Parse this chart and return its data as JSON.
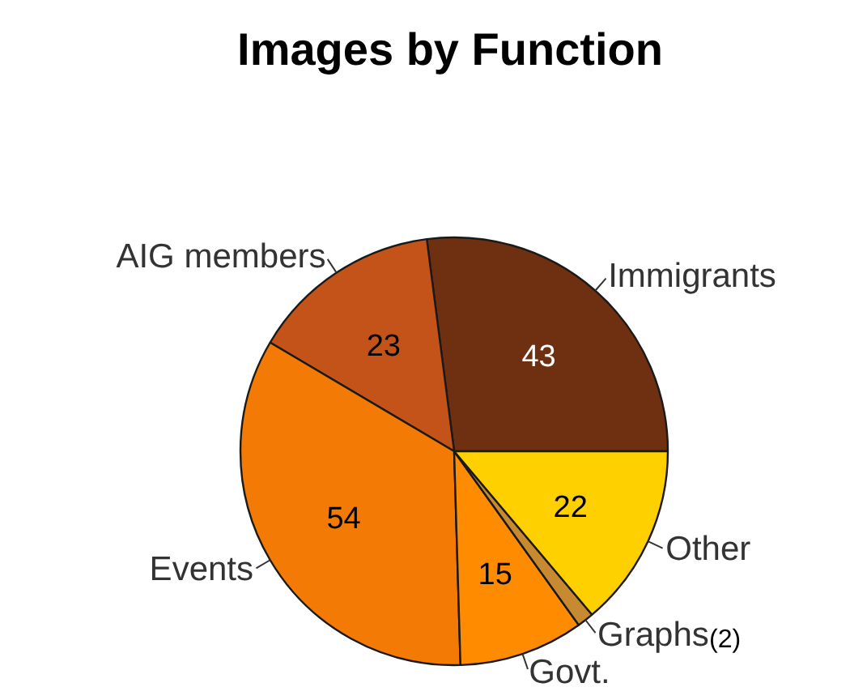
{
  "chart_data": {
    "type": "pie",
    "title": "Images by Function",
    "categories": [
      "Immigrants",
      "AIG members",
      "Events",
      "Govt.",
      "Graphs",
      "Other"
    ],
    "values": [
      43,
      23,
      54,
      15,
      2,
      22
    ],
    "colors": [
      "#6e3010",
      "#c4531a",
      "#f27a05",
      "#ff8c00",
      "#c88a30",
      "#ffd000"
    ],
    "value_labels": [
      "43",
      "23",
      "54",
      "15",
      "(2)",
      "22"
    ]
  }
}
